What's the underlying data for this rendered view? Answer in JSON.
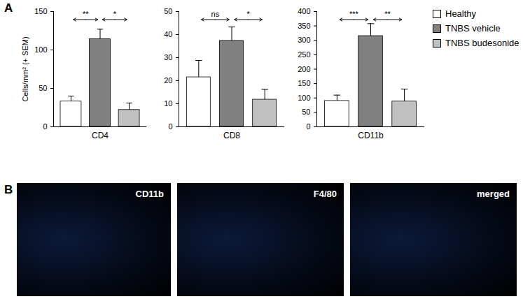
{
  "panel_label": "A",
  "chart_data": [
    {
      "type": "bar",
      "categories": [
        "CD4"
      ],
      "ylabel": "Cells/mm² (+ SEM)",
      "ylim": [
        0,
        150
      ],
      "yticks": [
        0,
        50,
        100,
        150
      ],
      "series": [
        {
          "name": "Healthy",
          "color": "#ffffff",
          "values": [
            33
          ],
          "errors": [
            7
          ]
        },
        {
          "name": "TNBS vehicle",
          "color": "#808080",
          "values": [
            114
          ],
          "errors": [
            13
          ]
        },
        {
          "name": "TNBS budesonide",
          "color": "#c0c0c0",
          "values": [
            22
          ],
          "errors": [
            9
          ]
        }
      ],
      "comparisons": [
        {
          "from": "Healthy",
          "to": "TNBS vehicle",
          "label": "**"
        },
        {
          "from": "TNBS vehicle",
          "to": "TNBS budesonide",
          "label": "*"
        }
      ]
    },
    {
      "type": "bar",
      "categories": [
        "CD8"
      ],
      "ylim": [
        0,
        50
      ],
      "yticks": [
        0,
        10,
        20,
        30,
        40,
        50
      ],
      "series": [
        {
          "name": "Healthy",
          "color": "#ffffff",
          "values": [
            21.5
          ],
          "errors": [
            7.3
          ]
        },
        {
          "name": "TNBS vehicle",
          "color": "#808080",
          "values": [
            37.3
          ],
          "errors": [
            6
          ]
        },
        {
          "name": "TNBS budesonide",
          "color": "#c0c0c0",
          "values": [
            11.8
          ],
          "errors": [
            4.4
          ]
        }
      ],
      "comparisons": [
        {
          "from": "Healthy",
          "to": "TNBS vehicle",
          "label": "ns"
        },
        {
          "from": "TNBS vehicle",
          "to": "TNBS budesonide",
          "label": "*"
        }
      ]
    },
    {
      "type": "bar",
      "categories": [
        "CD11b"
      ],
      "legend": "right",
      "ylim": [
        0,
        400
      ],
      "yticks": [
        0,
        50,
        100,
        150,
        200,
        250,
        300,
        350,
        400
      ],
      "series": [
        {
          "name": "Healthy",
          "color": "#ffffff",
          "values": [
            90
          ],
          "errors": [
            20
          ]
        },
        {
          "name": "TNBS vehicle",
          "color": "#808080",
          "values": [
            315
          ],
          "errors": [
            43
          ]
        },
        {
          "name": "TNBS budesonide",
          "color": "#c0c0c0",
          "values": [
            88
          ],
          "errors": [
            43
          ]
        }
      ],
      "comparisons": [
        {
          "from": "Healthy",
          "to": "TNBS vehicle",
          "label": "***"
        },
        {
          "from": "TNBS vehicle",
          "to": "TNBS budesonide",
          "label": "**"
        }
      ]
    }
  ],
  "image_panels": {
    "label": "B",
    "images": [
      "CD11b",
      "F4/80",
      "merged"
    ]
  }
}
